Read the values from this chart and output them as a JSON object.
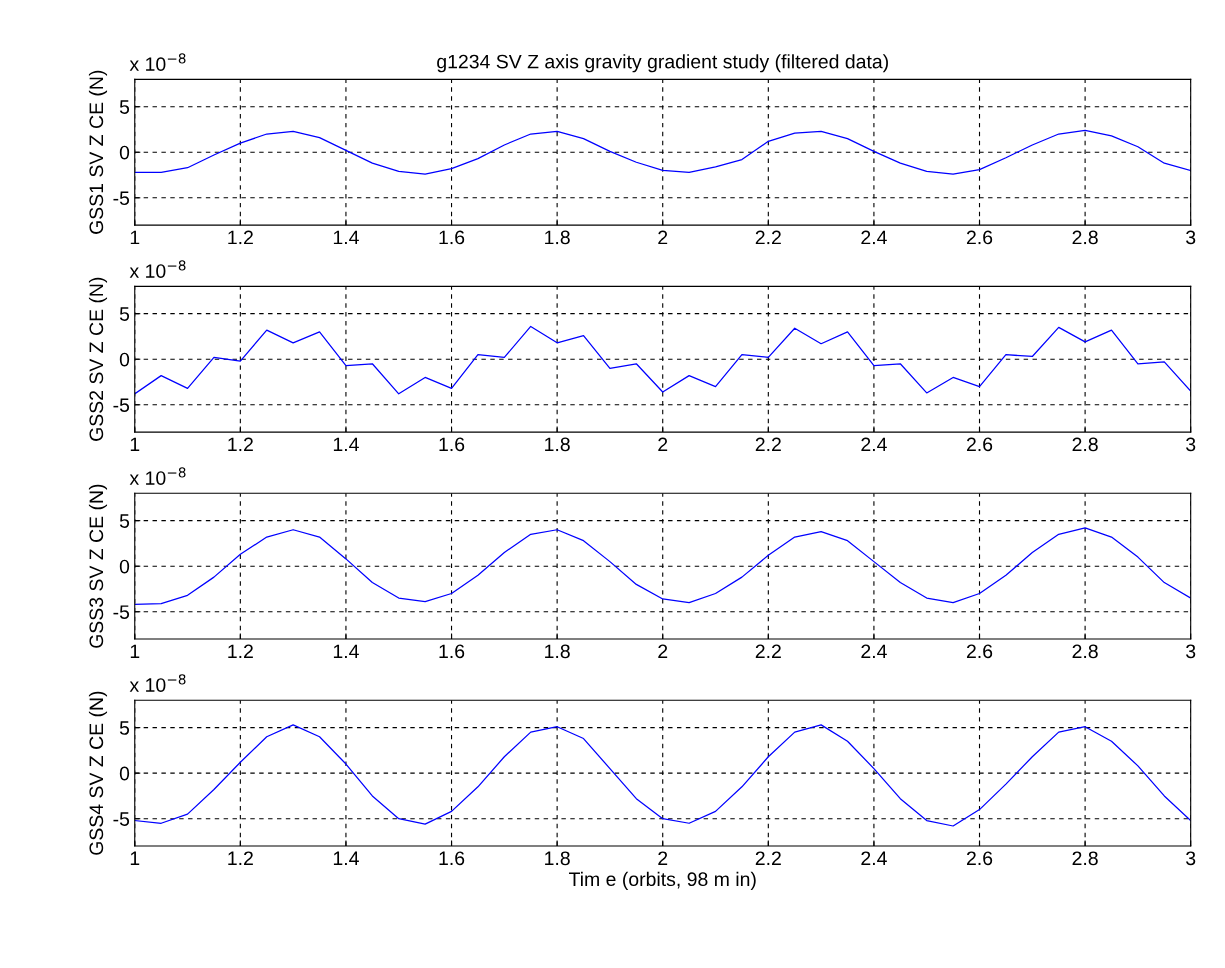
{
  "chart_data": [
    {
      "type": "line",
      "title": "g1234 SV Z axis gravity gradient study (filtered data)",
      "ylabel": "GSS1 SV Z CE (N)",
      "annotations": [
        "x 10$^{−8}$"
      ],
      "x": [
        1.0,
        1.05,
        1.1,
        1.15,
        1.2,
        1.25,
        1.3,
        1.35,
        1.4,
        1.45,
        1.5,
        1.55,
        1.6,
        1.65,
        1.7,
        1.75,
        1.8,
        1.85,
        1.9,
        1.95,
        2.0,
        2.05,
        2.1,
        2.15,
        2.2,
        2.25,
        2.3,
        2.35,
        2.4,
        2.45,
        2.5,
        2.55,
        2.6,
        2.65,
        2.7,
        2.75,
        2.8,
        2.85,
        2.9,
        2.95,
        3.0
      ],
      "series": [
        {
          "color": "#0000ff",
          "values": [
            -2.2,
            -2.2,
            -1.7,
            -0.3,
            1.0,
            2.0,
            2.3,
            1.6,
            0.2,
            -1.2,
            -2.1,
            -2.4,
            -1.8,
            -0.7,
            0.8,
            2.0,
            2.3,
            1.5,
            0.1,
            -1.1,
            -2.0,
            -2.2,
            -1.6,
            -0.8,
            1.2,
            2.1,
            2.3,
            1.5,
            0.1,
            -1.2,
            -2.1,
            -2.4,
            -1.9,
            -0.6,
            0.8,
            2.0,
            2.4,
            1.8,
            0.6,
            -1.2,
            -2.0
          ]
        }
      ],
      "xlim": [
        1,
        3
      ],
      "ylim": [
        -8,
        8
      ],
      "xticks": [
        1,
        1.2,
        1.4,
        1.6,
        1.8,
        2,
        2.2,
        2.4,
        2.6,
        2.8,
        3
      ],
      "yticks": [
        -5,
        0,
        5
      ],
      "grid": true,
      "line_style": "solid"
    },
    {
      "type": "line",
      "ylabel": "GSS2 SV Z CE (N)",
      "annotations": [
        "x 10$^{−8}$"
      ],
      "x": [
        1.0,
        1.05,
        1.1,
        1.15,
        1.2,
        1.25,
        1.3,
        1.35,
        1.4,
        1.45,
        1.5,
        1.55,
        1.6,
        1.65,
        1.7,
        1.75,
        1.8,
        1.85,
        1.9,
        1.95,
        2.0,
        2.05,
        2.1,
        2.15,
        2.2,
        2.25,
        2.3,
        2.35,
        2.4,
        2.45,
        2.5,
        2.55,
        2.6,
        2.65,
        2.7,
        2.75,
        2.8,
        2.85,
        2.9,
        2.95,
        3.0
      ],
      "series": [
        {
          "color": "#0000ff",
          "values": [
            -3.8,
            -1.8,
            -3.2,
            0.2,
            -0.2,
            3.2,
            1.8,
            3.0,
            -0.7,
            -0.5,
            -3.8,
            -2.0,
            -3.2,
            0.5,
            0.2,
            3.6,
            1.8,
            2.6,
            -1.0,
            -0.5,
            -3.6,
            -1.8,
            -3.0,
            0.5,
            0.2,
            3.4,
            1.7,
            3.0,
            -0.7,
            -0.5,
            -3.7,
            -2.0,
            -3.0,
            0.5,
            0.3,
            3.5,
            1.9,
            3.2,
            -0.5,
            -0.3,
            -3.5
          ]
        }
      ],
      "xlim": [
        1,
        3
      ],
      "ylim": [
        -8,
        8
      ],
      "xticks": [
        1,
        1.2,
        1.4,
        1.6,
        1.8,
        2,
        2.2,
        2.4,
        2.6,
        2.8,
        3
      ],
      "yticks": [
        -5,
        0,
        5
      ],
      "grid": true,
      "line_style": "solid"
    },
    {
      "type": "line",
      "ylabel": "GSS3 SV Z CE (N)",
      "annotations": [
        "x 10$^{−8}$"
      ],
      "x": [
        1.0,
        1.05,
        1.1,
        1.15,
        1.2,
        1.25,
        1.3,
        1.35,
        1.4,
        1.45,
        1.5,
        1.55,
        1.6,
        1.65,
        1.7,
        1.75,
        1.8,
        1.85,
        1.9,
        1.95,
        2.0,
        2.05,
        2.1,
        2.15,
        2.2,
        2.25,
        2.3,
        2.35,
        2.4,
        2.45,
        2.5,
        2.55,
        2.6,
        2.65,
        2.7,
        2.75,
        2.8,
        2.85,
        2.9,
        2.95,
        3.0
      ],
      "series": [
        {
          "color": "#0000ff",
          "values": [
            -4.2,
            -4.1,
            -3.2,
            -1.2,
            1.3,
            3.2,
            4.0,
            3.2,
            0.8,
            -1.8,
            -3.5,
            -3.9,
            -3.0,
            -1.0,
            1.5,
            3.5,
            4.0,
            2.8,
            0.5,
            -2.0,
            -3.6,
            -4.0,
            -3.0,
            -1.2,
            1.2,
            3.2,
            3.8,
            2.8,
            0.5,
            -1.8,
            -3.5,
            -4.0,
            -3.0,
            -1.0,
            1.5,
            3.5,
            4.2,
            3.2,
            1.0,
            -1.8,
            -3.5
          ]
        }
      ],
      "xlim": [
        1,
        3
      ],
      "ylim": [
        -8,
        8
      ],
      "xticks": [
        1,
        1.2,
        1.4,
        1.6,
        1.8,
        2,
        2.2,
        2.4,
        2.6,
        2.8,
        3
      ],
      "yticks": [
        -5,
        0,
        5
      ],
      "grid": true,
      "line_style": "solid"
    },
    {
      "type": "line",
      "ylabel": "GSS4 SV Z CE (N)",
      "xlabel": "Tim e (orbits, 98 m in)",
      "annotations": [
        "x 10$^{−8}$"
      ],
      "x": [
        1.0,
        1.05,
        1.1,
        1.15,
        1.2,
        1.25,
        1.3,
        1.35,
        1.4,
        1.45,
        1.5,
        1.55,
        1.6,
        1.65,
        1.7,
        1.75,
        1.8,
        1.85,
        1.9,
        1.95,
        2.0,
        2.05,
        2.1,
        2.15,
        2.2,
        2.25,
        2.3,
        2.35,
        2.4,
        2.45,
        2.5,
        2.55,
        2.6,
        2.65,
        2.7,
        2.75,
        2.8,
        2.85,
        2.9,
        2.95,
        3.0
      ],
      "series": [
        {
          "color": "#0000ff",
          "values": [
            -5.2,
            -5.5,
            -4.5,
            -1.8,
            1.2,
            4.0,
            5.3,
            4.0,
            1.0,
            -2.5,
            -5.0,
            -5.6,
            -4.2,
            -1.5,
            1.8,
            4.5,
            5.1,
            3.8,
            0.5,
            -2.8,
            -5.0,
            -5.5,
            -4.2,
            -1.5,
            1.8,
            4.5,
            5.3,
            3.5,
            0.5,
            -2.8,
            -5.2,
            -5.8,
            -4.0,
            -1.2,
            1.8,
            4.5,
            5.1,
            3.5,
            0.8,
            -2.5,
            -5.2
          ]
        }
      ],
      "xlim": [
        1,
        3
      ],
      "ylim": [
        -8,
        8
      ],
      "xticks": [
        1,
        1.2,
        1.4,
        1.6,
        1.8,
        2,
        2.2,
        2.4,
        2.6,
        2.8,
        3
      ],
      "yticks": [
        -5,
        0,
        5
      ],
      "grid": true,
      "line_style": "solid"
    }
  ]
}
